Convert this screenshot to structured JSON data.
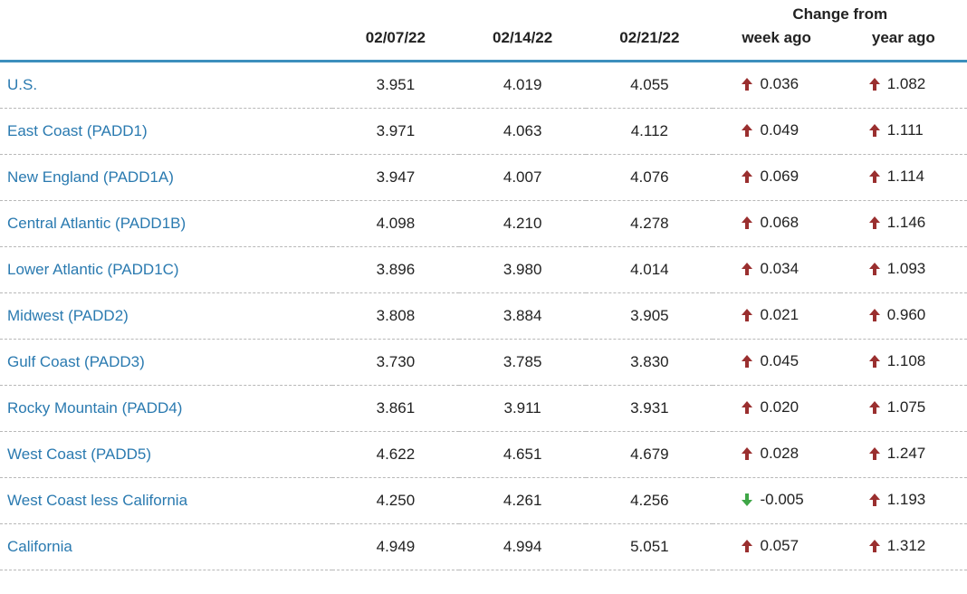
{
  "columns": {
    "change_from": "Change from",
    "d1": "02/07/22",
    "d2": "02/14/22",
    "d3": "02/21/22",
    "week": "week ago",
    "year": "year ago"
  },
  "colors": {
    "link": "#2a7ab0",
    "text": "#222222",
    "header_border": "#3c8fbd",
    "row_border": "#b8b8b8",
    "up": "#9a2f2f",
    "down": "#3fa647",
    "background": "#ffffff"
  },
  "rows": [
    {
      "label": "U.S.",
      "indent": 1,
      "v1": "3.951",
      "v2": "4.019",
      "v3": "4.055",
      "week_dir": "up",
      "week": "0.036",
      "year_dir": "up",
      "year": "1.082"
    },
    {
      "label": "East Coast (PADD1)",
      "indent": 1,
      "v1": "3.971",
      "v2": "4.063",
      "v3": "4.112",
      "week_dir": "up",
      "week": "0.049",
      "year_dir": "up",
      "year": "1.111"
    },
    {
      "label": "New England (PADD1A)",
      "indent": 2,
      "v1": "3.947",
      "v2": "4.007",
      "v3": "4.076",
      "week_dir": "up",
      "week": "0.069",
      "year_dir": "up",
      "year": "1.114"
    },
    {
      "label": "Central Atlantic (PADD1B)",
      "indent": 2,
      "v1": "4.098",
      "v2": "4.210",
      "v3": "4.278",
      "week_dir": "up",
      "week": "0.068",
      "year_dir": "up",
      "year": "1.146"
    },
    {
      "label": "Lower Atlantic (PADD1C)",
      "indent": 2,
      "v1": "3.896",
      "v2": "3.980",
      "v3": "4.014",
      "week_dir": "up",
      "week": "0.034",
      "year_dir": "up",
      "year": "1.093"
    },
    {
      "label": "Midwest (PADD2)",
      "indent": 1,
      "v1": "3.808",
      "v2": "3.884",
      "v3": "3.905",
      "week_dir": "up",
      "week": "0.021",
      "year_dir": "up",
      "year": "0.960"
    },
    {
      "label": "Gulf Coast (PADD3)",
      "indent": 1,
      "v1": "3.730",
      "v2": "3.785",
      "v3": "3.830",
      "week_dir": "up",
      "week": "0.045",
      "year_dir": "up",
      "year": "1.108"
    },
    {
      "label": "Rocky Mountain (PADD4)",
      "indent": 1,
      "v1": "3.861",
      "v2": "3.911",
      "v3": "3.931",
      "week_dir": "up",
      "week": "0.020",
      "year_dir": "up",
      "year": "1.075"
    },
    {
      "label": "West Coast (PADD5)",
      "indent": 1,
      "v1": "4.622",
      "v2": "4.651",
      "v3": "4.679",
      "week_dir": "up",
      "week": "0.028",
      "year_dir": "up",
      "year": "1.247"
    },
    {
      "label": "West Coast less California",
      "indent": 2,
      "v1": "4.250",
      "v2": "4.261",
      "v3": "4.256",
      "week_dir": "down",
      "week": "-0.005",
      "year_dir": "up",
      "year": "1.193"
    },
    {
      "label": "California",
      "indent": 2,
      "v1": "4.949",
      "v2": "4.994",
      "v3": "5.051",
      "week_dir": "up",
      "week": "0.057",
      "year_dir": "up",
      "year": "1.312"
    }
  ]
}
